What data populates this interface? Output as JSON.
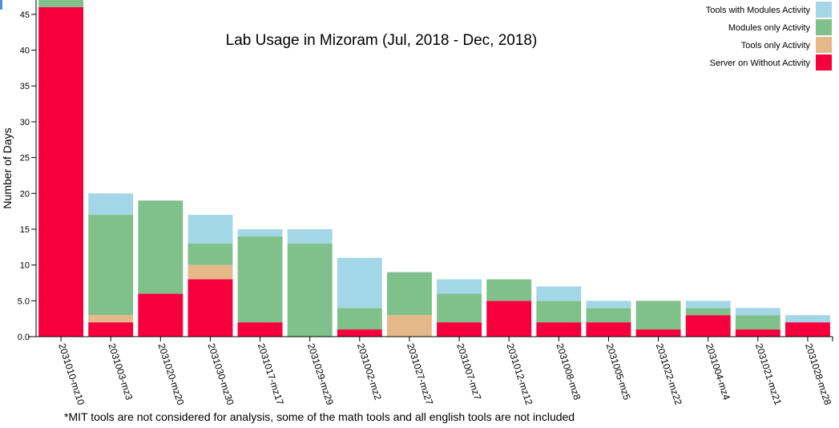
{
  "chart_data": {
    "type": "bar",
    "stacked": true,
    "title": "Lab Usage in Mizoram (Jul, 2018 - Dec, 2018)",
    "xlabel": "",
    "ylabel": "Number of Days",
    "ylim": [
      0,
      47
    ],
    "yticks": [
      "0.0",
      "5.0",
      "10",
      "15",
      "20",
      "25",
      "30",
      "35",
      "40",
      "45"
    ],
    "ytick_values": [
      0,
      5,
      10,
      15,
      20,
      25,
      30,
      35,
      40,
      45
    ],
    "categories": [
      "2031010-mz10",
      "2031003-mz3",
      "2031020-mz20",
      "2031030-mz30",
      "2031017-mz17",
      "2031029-mz29",
      "2031002-mz2",
      "2031027-mz27",
      "2031007-mz7",
      "2031012-mz12",
      "2031008-mz8",
      "2031005-mz5",
      "2031022-mz22",
      "2031004-mz4",
      "2031021-mz21",
      "2031028-mz28"
    ],
    "series": [
      {
        "name": "Server on Without Activity",
        "color": "#f5003d",
        "values": [
          46,
          2,
          6,
          8,
          2,
          0,
          1,
          0,
          2,
          5,
          2,
          2,
          1,
          3,
          1,
          2
        ]
      },
      {
        "name": "Tools only Activity",
        "color": "#e5b889",
        "values": [
          0,
          1,
          0,
          2,
          0,
          0,
          0,
          3,
          0,
          0,
          0,
          0,
          0,
          0,
          0,
          0
        ]
      },
      {
        "name": "Modules only Activity",
        "color": "#80c08a",
        "values": [
          1,
          14,
          13,
          3,
          12,
          13,
          3,
          6,
          4,
          3,
          3,
          2,
          4,
          1,
          2,
          0
        ]
      },
      {
        "name": "Tools with Modules Activity",
        "color": "#a3d6e6",
        "values": [
          0,
          3,
          0,
          4,
          1,
          2,
          7,
          0,
          2,
          0,
          2,
          1,
          0,
          1,
          1,
          1
        ]
      }
    ],
    "legend_placement": "top-right",
    "legend_order": [
      "Tools with Modules Activity",
      "Modules only Activity",
      "Tools only Activity",
      "Server on Without Activity"
    ],
    "grid": false
  },
  "footnote": "*MIT tools are not considered for analysis, some of the math tools and all english tools are not included"
}
